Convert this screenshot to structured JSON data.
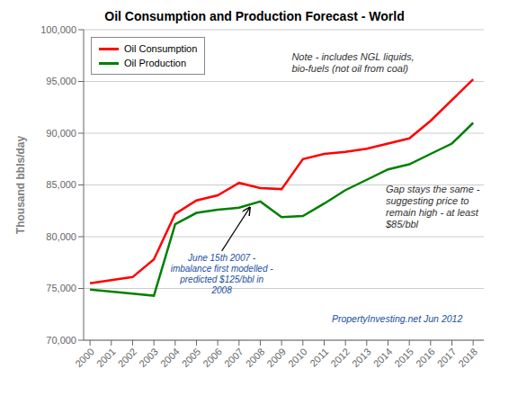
{
  "chart_data": {
    "type": "line",
    "title": "Oil Consumption and Production Forecast - World",
    "y_label": "Thousand bbls/day",
    "xlim": [
      1999.7,
      2018.5
    ],
    "ylim": [
      70000,
      100000
    ],
    "xticks": [
      2000,
      2001,
      2002,
      2003,
      2004,
      2005,
      2006,
      2007,
      2008,
      2009,
      2010,
      2011,
      2012,
      2013,
      2014,
      2015,
      2016,
      2017,
      2018
    ],
    "yticks": [
      {
        "value": 70000,
        "label": "70,000"
      },
      {
        "value": 75000,
        "label": "75,000"
      },
      {
        "value": 80000,
        "label": "80,000"
      },
      {
        "value": 85000,
        "label": "85,000"
      },
      {
        "value": 90000,
        "label": "90,000"
      },
      {
        "value": 95000,
        "label": "95,000"
      },
      {
        "value": 100000,
        "label": "100,000"
      }
    ],
    "grid": true,
    "legend": "upper left",
    "x": [
      2000,
      2001,
      2002,
      2003,
      2004,
      2005,
      2006,
      2007,
      2008,
      2009,
      2010,
      2011,
      2012,
      2013,
      2014,
      2015,
      2016,
      2017,
      2018
    ],
    "series": [
      {
        "name": "Oil Consumption",
        "color": "#FF0000",
        "values": [
          75500,
          75800,
          76100,
          77800,
          82200,
          83500,
          84000,
          85200,
          84700,
          84600,
          87500,
          88000,
          88200,
          88500,
          89000,
          89500,
          91200,
          93200,
          95200
        ]
      },
      {
        "name": "Oil Production",
        "color": "#008000",
        "values": [
          74900,
          74700,
          74500,
          74300,
          81200,
          82300,
          82600,
          82800,
          83400,
          81900,
          82000,
          83200,
          84500,
          85500,
          86500,
          87000,
          88000,
          89000,
          91000
        ]
      }
    ],
    "annotations": [
      {
        "text": "Note - includes NGL liquids,\nbio-fuels (not oil from coal)"
      },
      {
        "text": "June 15th 2007 -\nimbalance first modelled -\npredicted $125/bbl in\n2008",
        "x": 2007.5,
        "y": 82800
      },
      {
        "text": "Gap stays the same -\nsuggesting price to\nremain high - at least\n$85/bbl"
      },
      {
        "text": "PropertyInvesting.net Jun 2012"
      }
    ]
  }
}
